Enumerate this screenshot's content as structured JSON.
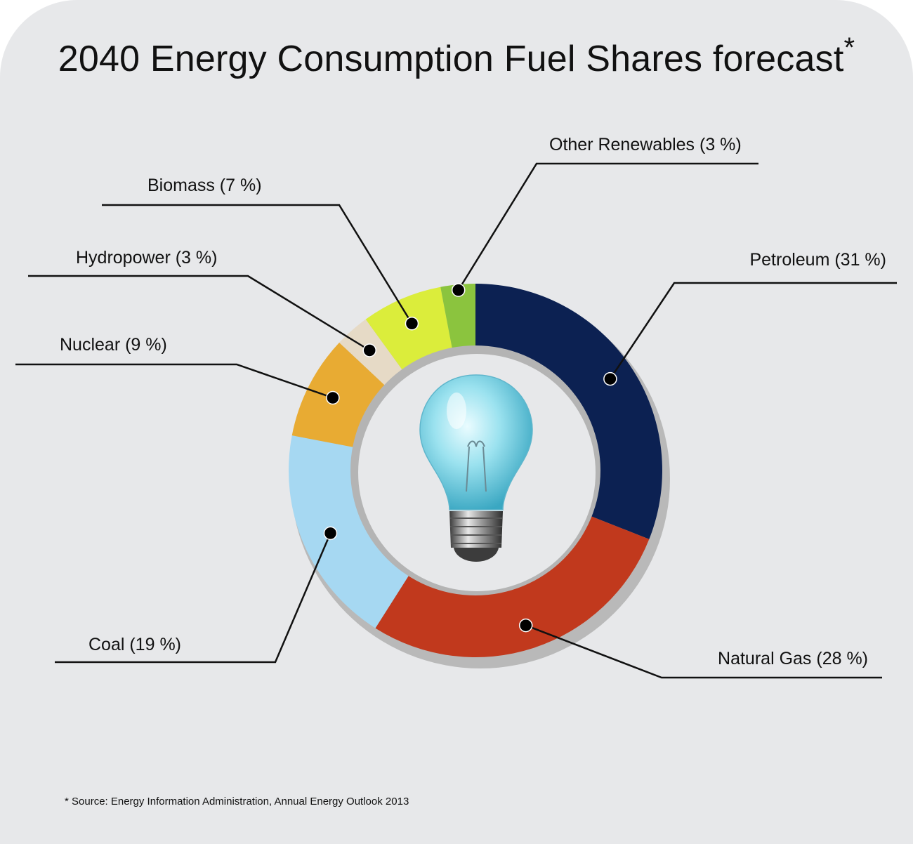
{
  "title": "2040 Energy Consumption Fuel Shares forecast",
  "title_mark": "*",
  "source": "* Source: Energy Information Administration, Annual Energy Outlook 2013",
  "chart_data": {
    "type": "pie",
    "variant": "donut",
    "title": "2040 Energy Consumption Fuel Shares forecast",
    "unit": "%",
    "slices": [
      {
        "name": "Petroleum",
        "value": 31,
        "label": "Petroleum (31 %)",
        "color": "#0c2152"
      },
      {
        "name": "Natural Gas",
        "value": 28,
        "label": "Natural Gas (28 %)",
        "color": "#c1391d"
      },
      {
        "name": "Coal",
        "value": 19,
        "label": "Coal (19 %)",
        "color": "#a6d8f2"
      },
      {
        "name": "Nuclear",
        "value": 9,
        "label": "Nuclear (9 %)",
        "color": "#e8ab33"
      },
      {
        "name": "Hydropower",
        "value": 3,
        "label": "Hydropower (3 %)",
        "color": "#e6dac6"
      },
      {
        "name": "Biomass",
        "value": 7,
        "label": "Biomass (7 %)",
        "color": "#dbed3b"
      },
      {
        "name": "Other Renewables",
        "value": 3,
        "label": "Other Renewables (3 %)",
        "color": "#8bc43e"
      }
    ],
    "legend": "none",
    "center_icon": "light-bulb-icon"
  }
}
